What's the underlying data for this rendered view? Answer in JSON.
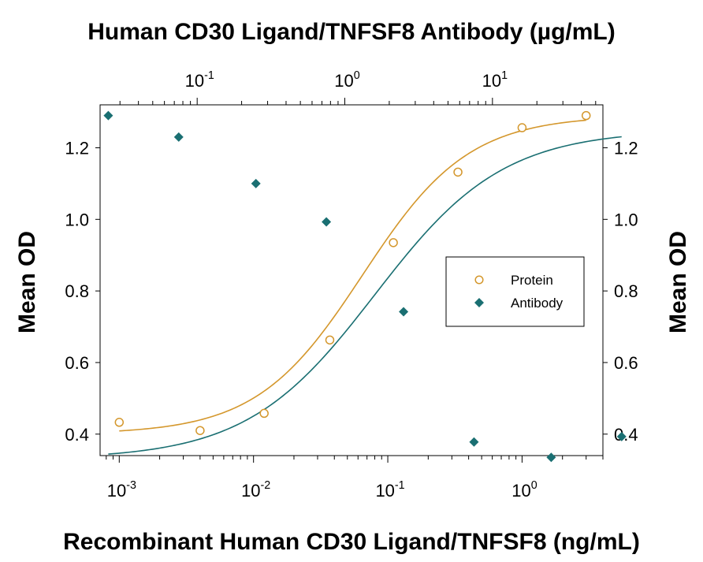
{
  "chart_data": {
    "type": "scatter",
    "title": "Human CD30 Ligand/TNFSF8 Antibody (µg/mL)",
    "xlabel": "Recombinant Human CD30 Ligand/TNFSF8 (ng/mL)",
    "ylabel": "Mean OD",
    "ylabel_right": "Mean OD",
    "x_scale": "log",
    "x2_scale": "log",
    "xlim": [
      0.00072,
      4.0
    ],
    "x2lim": [
      0.022,
      56
    ],
    "ylim": [
      0.34,
      1.32
    ],
    "yticks": [
      0.4,
      0.6,
      0.8,
      1.0,
      1.2
    ],
    "yticklabels": [
      "0.4",
      "0.6",
      "0.8",
      "1.0",
      "1.2"
    ],
    "xticks": [
      {
        "value": 0.001,
        "base": "10",
        "exp": "-3"
      },
      {
        "value": 0.01,
        "base": "10",
        "exp": "-2"
      },
      {
        "value": 0.1,
        "base": "10",
        "exp": "-1"
      },
      {
        "value": 1,
        "base": "10",
        "exp": "0"
      }
    ],
    "x2ticks": [
      {
        "value": 0.1,
        "base": "10",
        "exp": "-1"
      },
      {
        "value": 1,
        "base": "10",
        "exp": "0"
      },
      {
        "value": 10,
        "base": "10",
        "exp": "1"
      }
    ],
    "grid": false,
    "legend_position": "center-right",
    "series": [
      {
        "name": "Protein",
        "axis": "bottom",
        "marker": "open-circle",
        "color": "#d4972c",
        "x": [
          0.001,
          0.004,
          0.012,
          0.037,
          0.11,
          0.333,
          1.0,
          3.0
        ],
        "y": [
          0.433,
          0.41,
          0.458,
          0.663,
          0.935,
          1.132,
          1.256,
          1.29
        ],
        "fit": {
          "bottom": 0.4,
          "top": 1.29,
          "ec50": 0.065,
          "hill": 1.1
        }
      },
      {
        "name": "Antibody",
        "axis": "top",
        "marker": "filled-diamond",
        "color": "#1a6f72",
        "x": [
          0.025,
          0.075,
          0.25,
          0.75,
          2.5,
          7.5,
          25,
          75
        ],
        "y": [
          1.29,
          1.23,
          1.1,
          0.993,
          0.742,
          0.378,
          0.335,
          0.393
        ],
        "fit": {
          "bottom": 0.33,
          "top": 1.25,
          "ec50": 1.6,
          "hill": 1.0
        }
      }
    ]
  }
}
